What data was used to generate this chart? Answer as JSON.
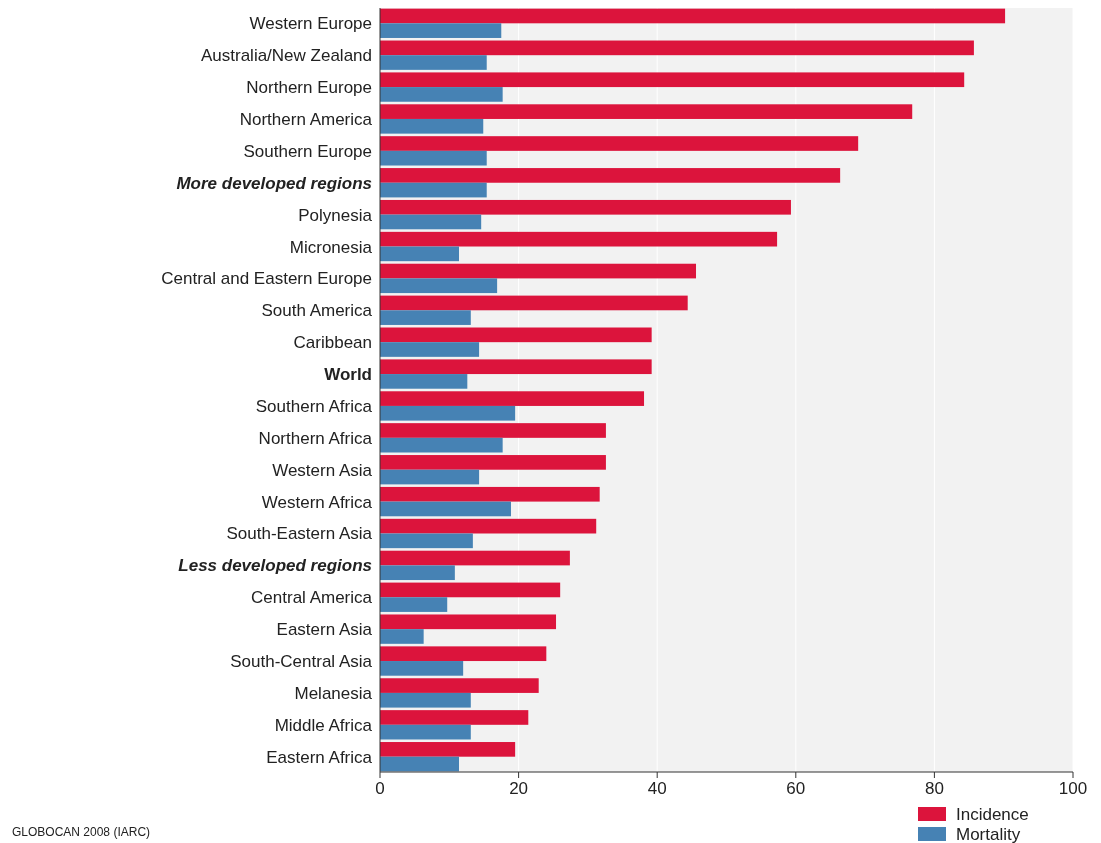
{
  "chart_data": {
    "type": "bar",
    "orientation": "horizontal",
    "categories": [
      "Western Europe",
      "Australia/New Zealand",
      "Northern Europe",
      "Northern America",
      "Southern Europe",
      "More developed regions",
      "Polynesia",
      "Micronesia",
      "Central and Eastern Europe",
      "South America",
      "Caribbean",
      "World",
      "Southern Africa",
      "Northern Africa",
      "Western Asia",
      "Western Africa",
      "South-Eastern Asia",
      "Less developed regions",
      "Central America",
      "Eastern Asia",
      "South-Central Asia",
      "Melanesia",
      "Middle Africa",
      "Eastern Africa"
    ],
    "series": [
      {
        "name": "Incidence",
        "color": "#dc143c",
        "values": [
          90.2,
          85.7,
          84.3,
          76.8,
          69.0,
          66.4,
          59.3,
          57.3,
          45.6,
          44.4,
          39.2,
          39.2,
          38.1,
          32.6,
          32.6,
          31.7,
          31.2,
          27.4,
          26.0,
          25.4,
          24.0,
          22.9,
          21.4,
          19.5
        ]
      },
      {
        "name": "Mortality",
        "color": "#4682b4",
        "values": [
          17.5,
          15.4,
          17.7,
          14.9,
          15.4,
          15.4,
          14.6,
          11.4,
          16.9,
          13.1,
          14.3,
          12.6,
          19.5,
          17.7,
          14.3,
          18.9,
          13.4,
          10.8,
          9.7,
          6.3,
          12.0,
          13.1,
          13.1,
          11.4
        ]
      }
    ],
    "xlim": [
      0,
      100
    ],
    "xticks": [
      0,
      20,
      40,
      60,
      80,
      100
    ],
    "grid": "x",
    "legend": "bottom right",
    "annotations": [
      "GLOBOCAN 2008 (IARC)"
    ]
  }
}
